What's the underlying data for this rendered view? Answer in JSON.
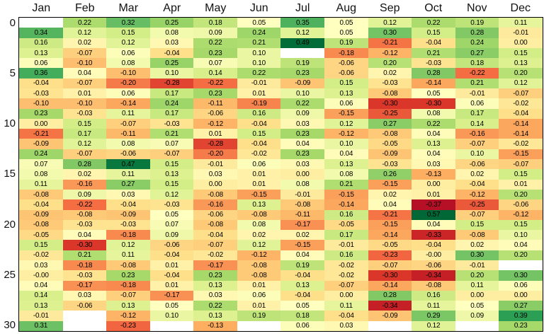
{
  "chart_data": {
    "type": "heatmap",
    "title": "",
    "xlabel": "",
    "ylabel": "",
    "columns": [
      "Jan",
      "Feb",
      "Mar",
      "Apr",
      "May",
      "Jun",
      "Jul",
      "Aug",
      "Sep",
      "Oct",
      "Nov",
      "Dec"
    ],
    "y_ticks": [
      0,
      5,
      10,
      15,
      20,
      25,
      30
    ],
    "n_rows": 31,
    "legend_position": "none",
    "grid_lines": false,
    "rows": [
      [
        null,
        "0.22",
        "0.32",
        "0.25",
        "0.18",
        "0.05",
        "0.35",
        "0.05",
        "0.12",
        "0.22",
        "0.19",
        "0.11"
      ],
      [
        "0.34",
        "0.12",
        "0.15",
        "0.08",
        "0.09",
        "0.24",
        "0.12",
        "0.05",
        "0.30",
        "0.15",
        "0.28",
        "-0.01"
      ],
      [
        "0.16",
        "0.02",
        "0.12",
        "0.03",
        "0.22",
        "0.21",
        "0.49",
        "0.19",
        "-0.21",
        "-0.04",
        "0.24",
        "0.00"
      ],
      [
        "0.13",
        "-0.07",
        "0.06",
        "-0.04",
        "0.23",
        "0.10",
        null,
        "-0.18",
        "-0.12",
        "0.21",
        "0.27",
        "0.15"
      ],
      [
        "0.06",
        "-0.10",
        "0.08",
        "0.25",
        "0.07",
        "0.10",
        "0.19",
        "-0.06",
        "0.20",
        "-0.03",
        "0.18",
        "0.13"
      ],
      [
        "0.36",
        "0.04",
        "-0.10",
        "0.10",
        "0.14",
        "0.22",
        "0.23",
        "-0.06",
        "0.02",
        "0.28",
        "-0.22",
        "0.20"
      ],
      [
        "-0.04",
        "-0.07",
        "-0.20",
        "-0.28",
        "-0.22",
        "-0.01",
        "-0.09",
        "0.15",
        "-0.03",
        "-0.14",
        "0.21",
        "0.12"
      ],
      [
        "-0.03",
        "0.01",
        "0.06",
        "0.17",
        "0.23",
        "0.01",
        "0.10",
        "0.13",
        "-0.08",
        "0.05",
        "-0.01",
        "-0.07"
      ],
      [
        "-0.10",
        "-0.10",
        "-0.14",
        "0.24",
        "-0.11",
        "-0.19",
        "0.22",
        "0.06",
        "-0.30",
        "-0.30",
        "0.06",
        "-0.02"
      ],
      [
        "0.23",
        "-0.03",
        "0.11",
        "0.17",
        "-0.06",
        "0.16",
        "0.09",
        "-0.15",
        "-0.25",
        "0.08",
        "0.17",
        "-0.04"
      ],
      [
        "0.00",
        "0.15",
        "-0.07",
        "-0.03",
        "-0.12",
        "-0.04",
        "0.03",
        "0.12",
        "0.27",
        "0.22",
        "0.14",
        "-0.14"
      ],
      [
        "-0.21",
        "0.17",
        "-0.11",
        "0.21",
        "0.01",
        "0.15",
        "0.23",
        "-0.12",
        "-0.08",
        "0.04",
        "-0.16",
        "-0.14"
      ],
      [
        "-0.09",
        "0.12",
        "0.08",
        "0.07",
        "-0.28",
        "-0.04",
        "0.04",
        "0.10",
        "-0.05",
        "0.13",
        "-0.07",
        "-0.02"
      ],
      [
        "0.24",
        "-0.07",
        "-0.06",
        "-0.07",
        "-0.20",
        "-0.02",
        "0.23",
        "0.04",
        "-0.09",
        "0.04",
        "0.10",
        "-0.15"
      ],
      [
        "0.07",
        "0.28",
        "0.47",
        "0.15",
        "-0.01",
        "0.06",
        "0.03",
        "0.13",
        "-0.03",
        "0.03",
        "-0.06",
        "-0.07"
      ],
      [
        "0.08",
        "0.02",
        "0.11",
        "0.13",
        "0.03",
        "0.01",
        "0.00",
        "0.08",
        "0.26",
        "-0.13",
        "0.02",
        "0.15"
      ],
      [
        "0.11",
        "-0.16",
        "0.27",
        "0.15",
        "0.00",
        "0.01",
        "0.08",
        "0.21",
        "-0.15",
        "0.00",
        "-0.04",
        "0.01"
      ],
      [
        "-0.08",
        "0.09",
        "0.03",
        "0.12",
        "-0.08",
        "-0.15",
        "-0.01",
        "-0.15",
        "0.02",
        "0.01",
        "-0.12",
        "0.20"
      ],
      [
        "-0.04",
        "-0.22",
        "-0.04",
        "-0.03",
        "-0.16",
        "0.13",
        "-0.08",
        "-0.14",
        "0.04",
        "-0.37",
        "-0.25",
        "-0.06"
      ],
      [
        "-0.09",
        "-0.08",
        "-0.09",
        "0.05",
        "-0.06",
        "-0.08",
        "-0.11",
        "0.16",
        "-0.21",
        "0.57",
        "-0.07",
        "-0.12"
      ],
      [
        "-0.08",
        "-0.03",
        "-0.03",
        "0.07",
        "-0.08",
        "0.08",
        "-0.17",
        "-0.05",
        "-0.15",
        "0.04",
        "0.15",
        "0.15"
      ],
      [
        "-0.05",
        "0.04",
        "-0.18",
        "0.09",
        "-0.04",
        "0.02",
        "0.02",
        "0.17",
        "-0.14",
        "-0.33",
        "-0.08",
        "0.10"
      ],
      [
        "0.15",
        "-0.30",
        "0.12",
        "-0.06",
        "-0.07",
        "0.12",
        "-0.15",
        "-0.01",
        "-0.05",
        "-0.04",
        "0.02",
        "0.04"
      ],
      [
        "-0.02",
        "0.21",
        "0.11",
        "-0.04",
        "-0.02",
        "-0.12",
        "0.04",
        "0.16",
        "-0.23",
        "-0.00",
        "0.30",
        "0.20"
      ],
      [
        "0.03",
        "-0.18",
        "-0.08",
        "0.01",
        "-0.17",
        "-0.08",
        "0.19",
        "-0.02",
        "-0.07",
        "-0.06",
        "-0.01",
        null
      ],
      [
        "-0.00",
        "-0.03",
        "0.23",
        "-0.04",
        "0.23",
        "-0.08",
        "-0.04",
        "-0.02",
        "-0.30",
        "-0.34",
        "0.20",
        "0.30"
      ],
      [
        "0.04",
        "-0.17",
        "-0.18",
        "0.01",
        "0.13",
        "0.01",
        "0.13",
        "-0.07",
        "-0.14",
        "-0.08",
        "0.11",
        "0.06"
      ],
      [
        "0.14",
        "0.03",
        "-0.07",
        "-0.17",
        "0.03",
        "0.06",
        "-0.04",
        "0.00",
        "0.28",
        "0.16",
        "0.00",
        "0.00"
      ],
      [
        "0.13",
        "-0.06",
        "0.13",
        "0.05",
        "0.22",
        "0.01",
        "0.05",
        "0.11",
        "-0.34",
        "0.11",
        "0.05",
        "0.27"
      ],
      [
        "-0.01",
        null,
        "-0.12",
        "0.10",
        "0.13",
        "0.19",
        "0.18",
        "-0.04",
        "-0.09",
        "0.29",
        "0.09",
        "0.39"
      ],
      [
        "0.31",
        null,
        "-0.23",
        null,
        "-0.13",
        null,
        "0.06",
        "0.03",
        null,
        "0.12",
        null,
        "0.23"
      ]
    ],
    "colormap": {
      "name": "RdYlGn",
      "domain": [
        -0.4,
        0.5
      ],
      "anchors": [
        "#a50026",
        "#d73027",
        "#f46d43",
        "#fdae61",
        "#fee08b",
        "#ffffbf",
        "#d9ef8b",
        "#a6d96a",
        "#66bd63",
        "#1a9850",
        "#006837"
      ]
    },
    "missing_color": "#ffffff",
    "frame_color": "#000000",
    "cell_text_color": "#000000"
  }
}
